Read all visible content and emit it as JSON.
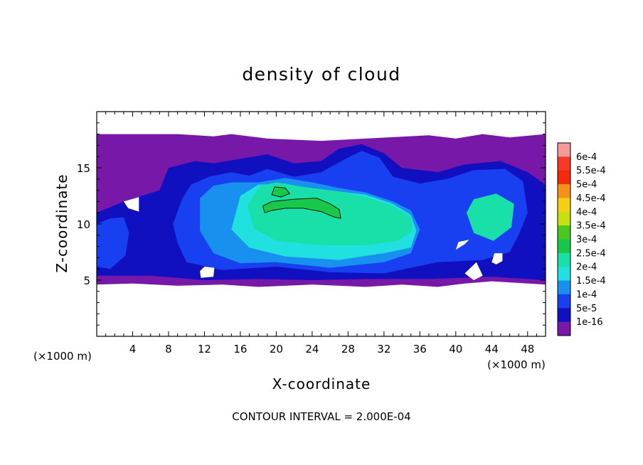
{
  "chart_data": {
    "type": "heatmap",
    "title": "density of cloud",
    "xlabel": "X-coordinate",
    "ylabel": "Z-coordinate",
    "x_unit": "(×1000 m)",
    "y_unit": "(×1000 m)",
    "xlim": [
      0,
      50
    ],
    "ylim": [
      0,
      20
    ],
    "x_ticks": [
      "4",
      "8",
      "12",
      "16",
      "20",
      "24",
      "28",
      "32",
      "36",
      "40",
      "44",
      "48"
    ],
    "y_ticks": [
      "5",
      "10",
      "15"
    ],
    "contour_interval_text": "CONTOUR INTERVAL = 2.000E-04",
    "colorbar": {
      "labels": [
        "6e-4",
        "5.5e-4",
        "5e-4",
        "4.5e-4",
        "4e-4",
        "3.5e-4",
        "3e-4",
        "2.5e-4",
        "2e-4",
        "1.5e-4",
        "1e-4",
        "5e-5",
        "1e-16"
      ],
      "colors": [
        "#f59a9a",
        "#f53a2a",
        "#f52a0a",
        "#f5901a",
        "#f5d010",
        "#c8e010",
        "#48c820",
        "#18c848",
        "#18e0a8",
        "#20e0e0",
        "#1890f0",
        "#1840f0",
        "#1010c0",
        "#7818a8"
      ]
    },
    "blobs": [
      {
        "level": 0,
        "points": [
          [
            0,
            18
          ],
          [
            9,
            18
          ],
          [
            13,
            17.8
          ],
          [
            15,
            18
          ],
          [
            19,
            17.6
          ],
          [
            25,
            17.4
          ],
          [
            30,
            17.6
          ],
          [
            37,
            17.9
          ],
          [
            40,
            17.6
          ],
          [
            43,
            18
          ],
          [
            46,
            17.7
          ],
          [
            50,
            18
          ],
          [
            50,
            4.6
          ],
          [
            44,
            4.9
          ],
          [
            41,
            4.7
          ],
          [
            38,
            4.4
          ],
          [
            34,
            4.6
          ],
          [
            30,
            4.4
          ],
          [
            24,
            4.6
          ],
          [
            18,
            4.4
          ],
          [
            14,
            4.6
          ],
          [
            9,
            4.5
          ],
          [
            4,
            4.7
          ],
          [
            0,
            4.6
          ]
        ]
      },
      {
        "level": 1,
        "points": [
          [
            0,
            11
          ],
          [
            3,
            12
          ],
          [
            7,
            13
          ],
          [
            8,
            15
          ],
          [
            11,
            15.6
          ],
          [
            13,
            15.4
          ],
          [
            16,
            15.8
          ],
          [
            19,
            16.2
          ],
          [
            22,
            15.4
          ],
          [
            25,
            15.6
          ],
          [
            27,
            16.7
          ],
          [
            29.5,
            17.1
          ],
          [
            32,
            16.3
          ],
          [
            34,
            15
          ],
          [
            38,
            14.6
          ],
          [
            41,
            15.3
          ],
          [
            45,
            15.6
          ],
          [
            48,
            14.6
          ],
          [
            50,
            13.5
          ],
          [
            50,
            5
          ],
          [
            44,
            5.3
          ],
          [
            37,
            5.1
          ],
          [
            30,
            5.1
          ],
          [
            24,
            5
          ],
          [
            18,
            5.1
          ],
          [
            12,
            5
          ],
          [
            6,
            5.4
          ],
          [
            0,
            5.4
          ]
        ]
      },
      {
        "level": 2,
        "points": [
          [
            8.5,
            10
          ],
          [
            9.5,
            12.2
          ],
          [
            10.5,
            13.5
          ],
          [
            12.5,
            14.2
          ],
          [
            15,
            14.6
          ],
          [
            17,
            14.3
          ],
          [
            19,
            14.9
          ],
          [
            22,
            14.2
          ],
          [
            25,
            14.6
          ],
          [
            27.5,
            15.7
          ],
          [
            29.5,
            16.5
          ],
          [
            31.5,
            15.9
          ],
          [
            33,
            14.2
          ],
          [
            36,
            13.6
          ],
          [
            39,
            14
          ],
          [
            42,
            14.8
          ],
          [
            45.5,
            14.9
          ],
          [
            47.5,
            13.8
          ],
          [
            48,
            11
          ],
          [
            47,
            9
          ],
          [
            46,
            7.5
          ],
          [
            43,
            6.8
          ],
          [
            38,
            6.6
          ],
          [
            32,
            5.6
          ],
          [
            26,
            5.7
          ],
          [
            20,
            6.2
          ],
          [
            14,
            5.9
          ],
          [
            10,
            6.6
          ],
          [
            9,
            8.3
          ]
        ]
      },
      {
        "level": 2,
        "points": [
          [
            0,
            10
          ],
          [
            1.5,
            10.5
          ],
          [
            3,
            10.6
          ],
          [
            3.6,
            9.2
          ],
          [
            3.2,
            7.2
          ],
          [
            1.5,
            6
          ],
          [
            0,
            6.2
          ]
        ]
      },
      {
        "level": 3,
        "points": [
          [
            11.5,
            12.3
          ],
          [
            13,
            13.4
          ],
          [
            15,
            13.7
          ],
          [
            18,
            13.7
          ],
          [
            21,
            14.1
          ],
          [
            24,
            13.7
          ],
          [
            27,
            13.2
          ],
          [
            30,
            12.8
          ],
          [
            33,
            12
          ],
          [
            35,
            11.2
          ],
          [
            36,
            9.5
          ],
          [
            35,
            7.4
          ],
          [
            32,
            6.6
          ],
          [
            26,
            6.1
          ],
          [
            20,
            6.6
          ],
          [
            16,
            6.5
          ],
          [
            13,
            7.4
          ],
          [
            11.5,
            9.4
          ]
        ]
      },
      {
        "level": 4,
        "points": [
          [
            16,
            12.5
          ],
          [
            18,
            13.5
          ],
          [
            21,
            13.6
          ],
          [
            24,
            13.1
          ],
          [
            27,
            12.9
          ],
          [
            30,
            12.6
          ],
          [
            33,
            11.8
          ],
          [
            35,
            10.8
          ],
          [
            35.6,
            9.4
          ],
          [
            35,
            7.9
          ],
          [
            32,
            7.4
          ],
          [
            27,
            6.8
          ],
          [
            21,
            7.1
          ],
          [
            17,
            7.9
          ],
          [
            15,
            9.5
          ]
        ]
      },
      {
        "level": 5,
        "points": [
          [
            18.2,
            13.4
          ],
          [
            20,
            13.7
          ],
          [
            23,
            13.3
          ],
          [
            27,
            12.9
          ],
          [
            30,
            12.4
          ],
          [
            33,
            11.6
          ],
          [
            35,
            10.6
          ],
          [
            35.2,
            9.4
          ],
          [
            33.5,
            8.5
          ],
          [
            30,
            8.1
          ],
          [
            25,
            8.1
          ],
          [
            20,
            8.5
          ],
          [
            17.5,
            9.6
          ],
          [
            16.8,
            11.6
          ]
        ]
      },
      {
        "level": 5,
        "points": [
          [
            42,
            12.2
          ],
          [
            44.5,
            12.7
          ],
          [
            46.5,
            11.8
          ],
          [
            46.2,
            9.7
          ],
          [
            44.2,
            8.5
          ],
          [
            42,
            9.2
          ],
          [
            41.2,
            11
          ]
        ]
      },
      {
        "level": 6,
        "points": [
          [
            18.5,
            11.6
          ],
          [
            19.5,
            12
          ],
          [
            22,
            12.2
          ],
          [
            24.5,
            12.3
          ],
          [
            26,
            11.8
          ],
          [
            27,
            11.3
          ],
          [
            27.2,
            10.5
          ],
          [
            26.5,
            10.6
          ],
          [
            25,
            11.1
          ],
          [
            23,
            11.4
          ],
          [
            21,
            11.4
          ],
          [
            19.5,
            11.2
          ],
          [
            18.7,
            11
          ]
        ]
      },
      {
        "level": 6,
        "points": [
          [
            19.5,
            12.6
          ],
          [
            19.8,
            13.3
          ],
          [
            21,
            13.2
          ],
          [
            21.5,
            12.7
          ],
          [
            20.5,
            12.4
          ]
        ]
      }
    ],
    "holes": [
      {
        "points": [
          [
            11.6,
            5.2
          ],
          [
            13,
            5.3
          ],
          [
            13.1,
            6.1
          ],
          [
            12,
            6.2
          ],
          [
            11.5,
            5.8
          ]
        ]
      },
      {
        "points": [
          [
            44,
            6.6
          ],
          [
            44.5,
            6.4
          ],
          [
            45.2,
            6.7
          ],
          [
            45.2,
            7.4
          ],
          [
            44.3,
            7.4
          ]
        ]
      },
      {
        "points": [
          [
            40,
            7.7
          ],
          [
            41,
            8.2
          ],
          [
            41.5,
            8.6
          ],
          [
            40.3,
            8.4
          ]
        ]
      },
      {
        "points": [
          [
            42,
            5
          ],
          [
            43,
            5.4
          ],
          [
            42.3,
            6.6
          ],
          [
            41,
            5.6
          ]
        ]
      },
      {
        "points": [
          [
            3,
            12
          ],
          [
            4.7,
            12.4
          ],
          [
            4.7,
            11.1
          ],
          [
            3.5,
            11.4
          ]
        ]
      }
    ]
  }
}
